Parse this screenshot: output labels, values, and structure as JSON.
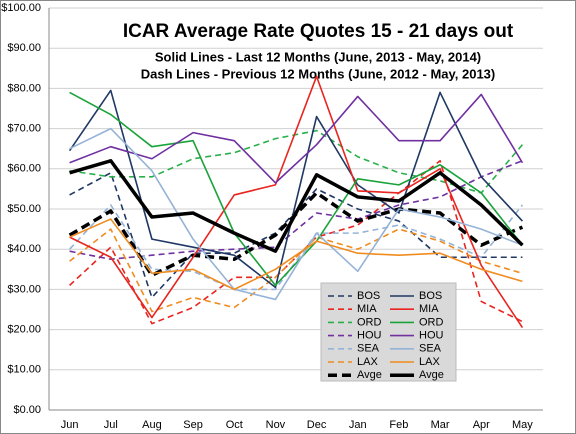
{
  "chart_data": {
    "type": "line",
    "title": "ICAR Average Rate  Quotes 15 - 21 days out",
    "subtitles": [
      "Solid Lines - Last 12 Months (June, 2013 - May, 2014)",
      "Dash Lines - Previous 12 Months (June, 2012 - May, 2013)"
    ],
    "categories": [
      "Jun",
      "Jul",
      "Aug",
      "Sep",
      "Oct",
      "Nov",
      "Dec",
      "Jan",
      "Feb",
      "Mar",
      "Apr",
      "May"
    ],
    "ylim": [
      0,
      100
    ],
    "yticks": [
      {
        "value": 0,
        "label": "$0.00"
      },
      {
        "value": 10,
        "label": "$10.00"
      },
      {
        "value": 20,
        "label": "$20.00"
      },
      {
        "value": 30,
        "label": "$30.00"
      },
      {
        "value": 40,
        "label": "$40.00"
      },
      {
        "value": 50,
        "label": "$50.00"
      },
      {
        "value": 60,
        "label": "$60.00"
      },
      {
        "value": 70,
        "label": "$70.00"
      },
      {
        "value": 80,
        "label": "$80.00"
      },
      {
        "value": 90,
        "label": "$90.00"
      },
      {
        "value": 100,
        "label": "$100.00"
      }
    ],
    "grid": true,
    "series": [
      {
        "name": "BOS",
        "color": "#1f3864",
        "dashed": true,
        "values": [
          53.5,
          59,
          28,
          39,
          39,
          44,
          55,
          50,
          47,
          38,
          38,
          38
        ]
      },
      {
        "name": "MIA",
        "color": "#e8251f",
        "dashed": true,
        "values": [
          31,
          40.5,
          21.5,
          25.5,
          33,
          33,
          43,
          46,
          54,
          62,
          27,
          22
        ]
      },
      {
        "name": "ORD",
        "color": "#2ab04a",
        "dashed": true,
        "values": [
          59.5,
          58,
          58,
          62.5,
          64,
          67.5,
          69.5,
          63,
          59,
          57,
          54,
          66
        ]
      },
      {
        "name": "HOU",
        "color": "#7030a0",
        "dashed": true,
        "values": [
          39.5,
          37.5,
          38.5,
          39.5,
          40,
          40.5,
          49,
          47.5,
          51,
          53,
          58,
          62
        ]
      },
      {
        "name": "SEA",
        "color": "#95b3d7",
        "dashed": true,
        "values": [
          40,
          51,
          35,
          34.5,
          30,
          30,
          44,
          44,
          46,
          42.5,
          38,
          51
        ]
      },
      {
        "name": "LAX",
        "color": "#f08c1f",
        "dashed": true,
        "values": [
          37,
          45,
          24.5,
          28,
          25.5,
          33,
          43,
          40,
          45,
          42,
          37,
          34
        ]
      },
      {
        "name": "Avge",
        "color": "#000000",
        "dashed": true,
        "values": [
          43.5,
          49.5,
          33.5,
          38.5,
          37.5,
          43.5,
          54,
          47,
          50,
          49,
          41,
          45.5
        ]
      },
      {
        "name": "BOS",
        "color": "#1f3864",
        "dashed": false,
        "values": [
          64.5,
          79.5,
          42.5,
          40.5,
          38.5,
          30.5,
          73,
          56,
          49,
          79,
          58,
          47
        ]
      },
      {
        "name": "MIA",
        "color": "#e8251f",
        "dashed": false,
        "values": [
          43,
          38,
          23,
          38,
          53.5,
          56,
          83,
          54.5,
          54,
          60,
          36,
          20.5
        ]
      },
      {
        "name": "ORD",
        "color": "#1aa33a",
        "dashed": false,
        "values": [
          79,
          73.5,
          65.5,
          67,
          44,
          31,
          42,
          57.5,
          56,
          61,
          54,
          41
        ]
      },
      {
        "name": "HOU",
        "color": "#7030a0",
        "dashed": false,
        "values": [
          61.5,
          65.5,
          62.5,
          69,
          67,
          56.5,
          66,
          78,
          67,
          67,
          78.5,
          61.5
        ]
      },
      {
        "name": "SEA",
        "color": "#95b3d7",
        "dashed": false,
        "values": [
          65,
          70,
          59.5,
          42.5,
          30,
          27.5,
          44,
          34.5,
          50,
          48,
          45,
          41
        ]
      },
      {
        "name": "LAX",
        "color": "#f08c1f",
        "dashed": false,
        "values": [
          43,
          47.5,
          34,
          35,
          30,
          35,
          42,
          39,
          38.5,
          39,
          35,
          32
        ]
      },
      {
        "name": "Avge",
        "color": "#000000",
        "dashed": false,
        "values": [
          59,
          62,
          48,
          49,
          44,
          39.5,
          58.5,
          53,
          52,
          59,
          51,
          41
        ]
      }
    ]
  }
}
